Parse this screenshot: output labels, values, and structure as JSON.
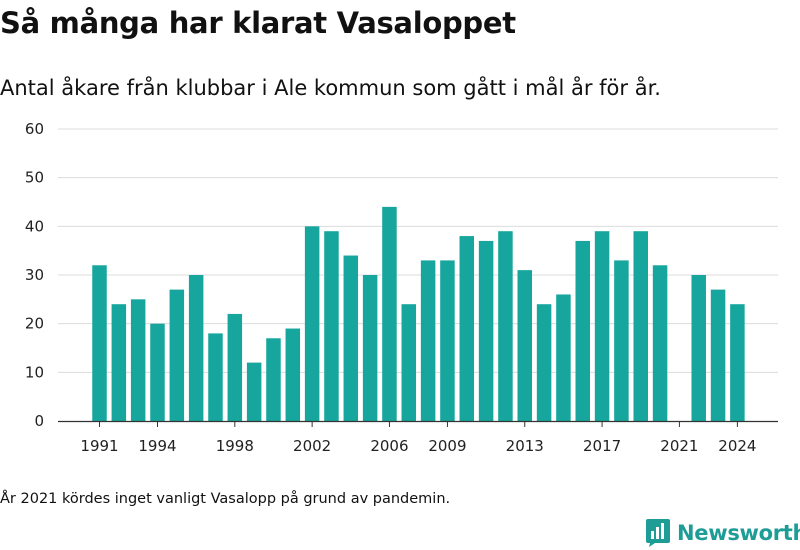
{
  "chart_data": {
    "type": "bar",
    "title": "Så många har klarat Vasaloppet",
    "subtitle": "Antal åkare från klubbar i Ale kommun som gått i mål år för år.",
    "xlabel": "",
    "ylabel": "",
    "categories": [
      1991,
      1992,
      1993,
      1994,
      1995,
      1996,
      1997,
      1998,
      1999,
      2000,
      2001,
      2002,
      2003,
      2004,
      2005,
      2006,
      2007,
      2008,
      2009,
      2010,
      2011,
      2012,
      2013,
      2014,
      2015,
      2016,
      2017,
      2018,
      2019,
      2020,
      2021,
      2022,
      2023,
      2024
    ],
    "values": [
      32,
      24,
      25,
      20,
      27,
      30,
      18,
      22,
      12,
      17,
      19,
      40,
      39,
      34,
      30,
      44,
      24,
      33,
      33,
      38,
      37,
      39,
      31,
      24,
      26,
      37,
      39,
      33,
      39,
      32,
      null,
      30,
      27,
      24
    ],
    "ylim": [
      0,
      60
    ],
    "y_ticks": [
      "0",
      "10",
      "20",
      "30",
      "40",
      "50",
      "60"
    ],
    "x_ticks": [
      "1991",
      "1994",
      "1998",
      "2002",
      "2006",
      "2009",
      "2013",
      "2017",
      "2021",
      "2024"
    ],
    "grid": true,
    "bar_color": "#17a69d",
    "footnote": "År 2021 kördes inget vanligt Vasalopp på grund av pandemin."
  },
  "brand": {
    "name": "Newsworthy",
    "icon": "newsworthy-logo-icon",
    "color": "#1e9d97"
  }
}
